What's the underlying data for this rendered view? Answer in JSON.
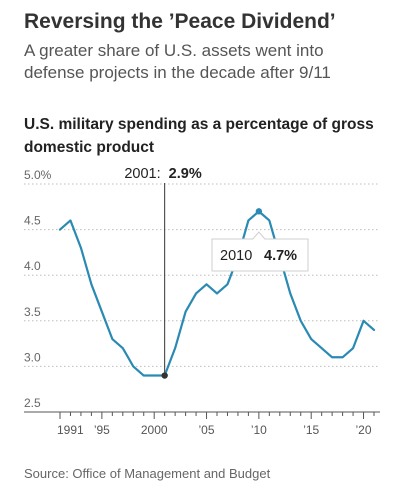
{
  "headline": "Reversing the ’Peace Dividend’",
  "dek": "A greater share of U.S. assets went into defense projects in the decade after 9/11",
  "source": "Source: Office of Management and Budget",
  "colors": {
    "line": "#2a8ab3",
    "grid": "#bdbdbd",
    "axis": "#555555",
    "annotation_line": "#333333",
    "marker": "#333333"
  },
  "chart_data": {
    "type": "line",
    "title": "U.S. military spending as a percentage of gross domestic product",
    "xlabel": "",
    "ylabel": "",
    "xlim": [
      1991,
      2021
    ],
    "ylim": [
      2.5,
      5.0
    ],
    "grid": true,
    "yticks": [
      2.5,
      3.0,
      3.5,
      4.0,
      4.5,
      5.0
    ],
    "ytick_labels": [
      "2.5",
      "3.0",
      "3.5",
      "4.0",
      "4.5",
      "5.0%"
    ],
    "xticks": [
      1991,
      1995,
      2000,
      2005,
      2010,
      2015,
      2020
    ],
    "xtick_labels": [
      "1991",
      "’95",
      "2000",
      "’05",
      "’10",
      "’15",
      "’20"
    ],
    "series": [
      {
        "x": [
          1991,
          1992,
          1993,
          1994,
          1995,
          1996,
          1997,
          1998,
          1999,
          2000,
          2001,
          2002,
          2003,
          2004,
          2005,
          2006,
          2007,
          2008,
          2009,
          2010,
          2011,
          2012,
          2013,
          2014,
          2015,
          2016,
          2017,
          2018,
          2019,
          2020,
          2021
        ],
        "values": [
          4.5,
          4.6,
          4.3,
          3.9,
          3.6,
          3.3,
          3.2,
          3.0,
          2.9,
          2.9,
          2.9,
          3.2,
          3.6,
          3.8,
          3.9,
          3.8,
          3.9,
          4.2,
          4.6,
          4.7,
          4.6,
          4.2,
          3.8,
          3.5,
          3.3,
          3.2,
          3.1,
          3.1,
          3.2,
          3.5,
          3.4
        ]
      }
    ],
    "annotations": [
      {
        "x": 2001,
        "y": 2.9,
        "label": "2001:",
        "value": "2.9%"
      },
      {
        "x": 2010,
        "y": 4.7,
        "label": "2010",
        "value": "4.7%"
      }
    ]
  }
}
